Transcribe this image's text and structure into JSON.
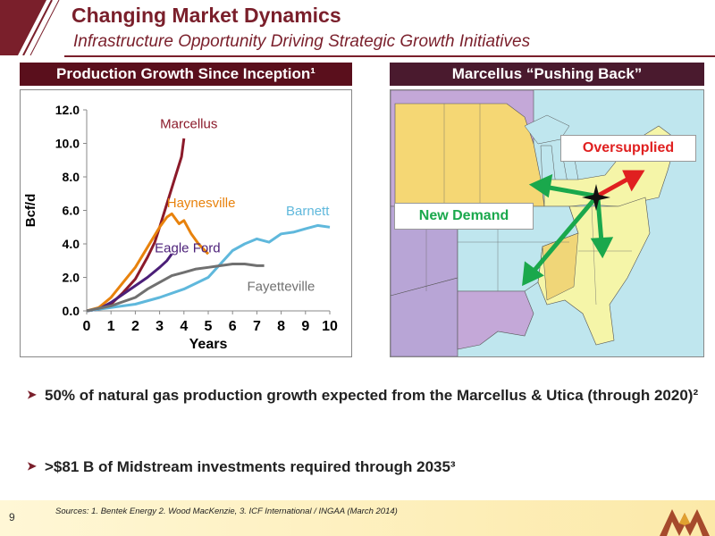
{
  "header": {
    "title": "Changing Market Dynamics",
    "subtitle": "Infrastructure Opportunity Driving Strategic Growth Initiatives"
  },
  "left_panel": {
    "heading": "Production Growth Since Inception¹"
  },
  "right_panel": {
    "heading": "Marcellus “Pushing Back”",
    "oversupplied_label": "Oversupplied",
    "new_demand_label": "New Demand"
  },
  "chart_data": {
    "type": "line",
    "title": "",
    "xlabel": "Years",
    "ylabel": "Bcf/d",
    "xlim": [
      0,
      10
    ],
    "ylim": [
      0,
      12
    ],
    "x_ticks": [
      "0",
      "1",
      "2",
      "3",
      "4",
      "5",
      "6",
      "7",
      "8",
      "9",
      "10"
    ],
    "y_ticks": [
      "0.0",
      "2.0",
      "4.0",
      "6.0",
      "8.0",
      "10.0",
      "12.0"
    ],
    "series": [
      {
        "name": "Marcellus",
        "color": "#8b1a2a",
        "points": [
          [
            0,
            0
          ],
          [
            0.5,
            0.1
          ],
          [
            1,
            0.4
          ],
          [
            1.5,
            1.1
          ],
          [
            2,
            1.9
          ],
          [
            2.5,
            3.2
          ],
          [
            2.8,
            4.1
          ],
          [
            3,
            5.0
          ],
          [
            3.3,
            6.4
          ],
          [
            3.6,
            7.8
          ],
          [
            3.9,
            9.2
          ],
          [
            4,
            10.3
          ]
        ]
      },
      {
        "name": "Haynesville",
        "color": "#e8820c",
        "points": [
          [
            0,
            0
          ],
          [
            0.5,
            0.2
          ],
          [
            1,
            0.8
          ],
          [
            1.5,
            1.7
          ],
          [
            2,
            2.6
          ],
          [
            2.5,
            3.8
          ],
          [
            3,
            5.0
          ],
          [
            3.3,
            5.6
          ],
          [
            3.5,
            5.8
          ],
          [
            3.8,
            5.2
          ],
          [
            4,
            5.4
          ],
          [
            4.3,
            4.6
          ],
          [
            4.6,
            4.0
          ],
          [
            5,
            3.4
          ]
        ]
      },
      {
        "name": "Eagle Ford",
        "color": "#4b1f78",
        "points": [
          [
            0,
            0
          ],
          [
            0.5,
            0.1
          ],
          [
            1,
            0.5
          ],
          [
            1.5,
            1.0
          ],
          [
            2,
            1.5
          ],
          [
            2.5,
            2.0
          ],
          [
            3,
            2.6
          ],
          [
            3.3,
            3.0
          ],
          [
            3.5,
            3.4
          ]
        ]
      },
      {
        "name": "Barnett",
        "color": "#5fb8dc",
        "points": [
          [
            0,
            0
          ],
          [
            1,
            0.2
          ],
          [
            2,
            0.4
          ],
          [
            3,
            0.8
          ],
          [
            4,
            1.3
          ],
          [
            5,
            2.0
          ],
          [
            5.5,
            2.8
          ],
          [
            6,
            3.6
          ],
          [
            6.5,
            4.0
          ],
          [
            7,
            4.3
          ],
          [
            7.5,
            4.1
          ],
          [
            8,
            4.6
          ],
          [
            8.5,
            4.7
          ],
          [
            9,
            4.9
          ],
          [
            9.5,
            5.1
          ],
          [
            10,
            5.0
          ]
        ]
      },
      {
        "name": "Fayetteville",
        "color": "#707070",
        "points": [
          [
            0,
            0
          ],
          [
            1,
            0.3
          ],
          [
            2,
            0.8
          ],
          [
            2.5,
            1.3
          ],
          [
            3,
            1.7
          ],
          [
            3.5,
            2.1
          ],
          [
            4,
            2.3
          ],
          [
            4.5,
            2.5
          ],
          [
            5,
            2.6
          ],
          [
            5.5,
            2.7
          ],
          [
            6,
            2.8
          ],
          [
            6.5,
            2.8
          ],
          [
            7,
            2.7
          ],
          [
            7.3,
            2.7
          ]
        ]
      }
    ]
  },
  "bullets": [
    {
      "text": "50% of natural gas production growth expected from the Marcellus & Utica (through 2020)²"
    },
    {
      "text": ">$81 B of Midstream investments required through 2035³"
    }
  ],
  "footer": {
    "page_number": "9",
    "sources": "Sources:  1. Bentek Energy  2. Wood MacKenzie, 3. ICF International / INGAA (March 2014)"
  },
  "colors": {
    "brand": "#7a1f2b",
    "header_bg": "#5a0f1c",
    "arrow_green": "#1aa84c",
    "arrow_red": "#e02020"
  },
  "icons": {
    "bullet": "chevron-right-icon",
    "logo": "company-logo-icon"
  }
}
